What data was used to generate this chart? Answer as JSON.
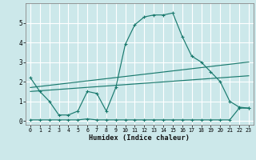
{
  "title": "",
  "xlabel": "Humidex (Indice chaleur)",
  "ylabel": "",
  "background_color": "#cce8ea",
  "grid_color": "#ffffff",
  "line_color": "#1a7a6e",
  "x": [
    0,
    1,
    2,
    3,
    4,
    5,
    6,
    7,
    8,
    9,
    10,
    11,
    12,
    13,
    14,
    15,
    16,
    17,
    18,
    19,
    20,
    21,
    22,
    23
  ],
  "line1": [
    2.2,
    1.5,
    1.0,
    0.3,
    0.3,
    0.5,
    1.5,
    1.4,
    0.5,
    1.7,
    3.9,
    4.9,
    5.3,
    5.4,
    5.4,
    5.5,
    4.3,
    3.3,
    3.0,
    2.5,
    2.0,
    1.0,
    0.7,
    0.65
  ],
  "line2": [
    0.05,
    0.05,
    0.05,
    0.05,
    0.05,
    0.05,
    0.1,
    0.05,
    0.05,
    0.05,
    0.05,
    0.05,
    0.05,
    0.05,
    0.05,
    0.05,
    0.05,
    0.05,
    0.05,
    0.05,
    0.05,
    0.05,
    0.65,
    0.65
  ],
  "line3_x": [
    0,
    23
  ],
  "line3_y": [
    1.7,
    3.0
  ],
  "line4_x": [
    0,
    23
  ],
  "line4_y": [
    1.5,
    2.3
  ],
  "ylim": [
    -0.2,
    6.0
  ],
  "xlim": [
    -0.5,
    23.5
  ],
  "yticks": [
    0,
    1,
    2,
    3,
    4,
    5
  ],
  "xticks": [
    0,
    1,
    2,
    3,
    4,
    5,
    6,
    7,
    8,
    9,
    10,
    11,
    12,
    13,
    14,
    15,
    16,
    17,
    18,
    19,
    20,
    21,
    22,
    23
  ]
}
